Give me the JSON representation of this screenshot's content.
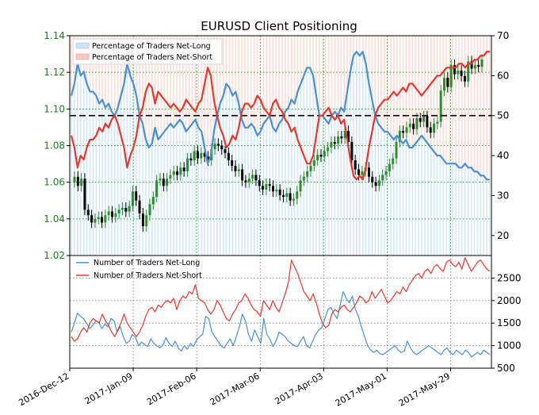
{
  "title": "EURUSD Client Positioning",
  "colors": {
    "long": "#4a90d0",
    "short": "#e03a2f",
    "candle_up": "#2e8b2e",
    "candle_down": "#000000",
    "left_axis": "#1f7a1f",
    "grid": "#2a9a2a"
  },
  "x_ticks": [
    "2016-Dec-12",
    "2017-Jan-09",
    "2017-Feb-06",
    "2017-Mar-06",
    "2017-Apr-03",
    "2017-May-01",
    "2017-May-29"
  ],
  "top_panel": {
    "left_axis_ticks": [
      "1.02",
      "1.04",
      "1.06",
      "1.08",
      "1.10",
      "1.12",
      "1.14"
    ],
    "right_axis_ticks": [
      "20",
      "30",
      "40",
      "50",
      "60",
      "70"
    ],
    "legend": [
      "Percentage of Traders Net-Long",
      "Percentage of Traders Net-Short"
    ]
  },
  "bottom_panel": {
    "right_axis_ticks": [
      "500",
      "1000",
      "1500",
      "2000",
      "2500"
    ],
    "legend": [
      "Number of Traders Net-Long",
      "Number of Traders Net-Short"
    ]
  },
  "chart_data": [
    {
      "type": "line",
      "panel": "top",
      "x_range_days": [
        0,
        186
      ],
      "x_tick_days": [
        0,
        28,
        56,
        84,
        112,
        140,
        168
      ],
      "ylim_left": [
        1.02,
        1.14
      ],
      "ylim_right": [
        15,
        70
      ],
      "reference_line": 50,
      "price_close": [
        1.063,
        1.058,
        1.062,
        1.045,
        1.042,
        1.038,
        1.04,
        1.041,
        1.038,
        1.042,
        1.044,
        1.041,
        1.043,
        1.045,
        1.046,
        1.044,
        1.047,
        1.055,
        1.05,
        1.043,
        1.036,
        1.042,
        1.048,
        1.052,
        1.061,
        1.062,
        1.058,
        1.062,
        1.064,
        1.066,
        1.064,
        1.068,
        1.066,
        1.073,
        1.072,
        1.077,
        1.073,
        1.076,
        1.074,
        1.072,
        1.078,
        1.081,
        1.08,
        1.078,
        1.076,
        1.072,
        1.069,
        1.066,
        1.067,
        1.061,
        1.06,
        1.062,
        1.064,
        1.061,
        1.058,
        1.056,
        1.059,
        1.058,
        1.055,
        1.056,
        1.053,
        1.052,
        1.054,
        1.05,
        1.051,
        1.055,
        1.061,
        1.063,
        1.066,
        1.069,
        1.072,
        1.075,
        1.074,
        1.077,
        1.079,
        1.082,
        1.081,
        1.085,
        1.084,
        1.088,
        1.082,
        1.072,
        1.067,
        1.064,
        1.066,
        1.068,
        1.063,
        1.06,
        1.058,
        1.061,
        1.064,
        1.066,
        1.07,
        1.073,
        1.082,
        1.088,
        1.087,
        1.09,
        1.092,
        1.089,
        1.095,
        1.093,
        1.096,
        1.09,
        1.087,
        1.092,
        1.093,
        1.11,
        1.117,
        1.112,
        1.124,
        1.119,
        1.121,
        1.118,
        1.115,
        1.126,
        1.122,
        1.124,
        1.123,
        1.127
      ],
      "series": [
        {
          "name": "Percentage of Traders Net-Long",
          "values": [
            55,
            58,
            63,
            60,
            61,
            58,
            56,
            56,
            55,
            53,
            54,
            52,
            53,
            51,
            50,
            52,
            55,
            58,
            63,
            60,
            58,
            55,
            50,
            48,
            44,
            42,
            43,
            47,
            44,
            45,
            46,
            47,
            48,
            47,
            48,
            49,
            48,
            46,
            47,
            48,
            49,
            47,
            46,
            42,
            38,
            40,
            46,
            50,
            53,
            55,
            58,
            57,
            55,
            56,
            53,
            49,
            47,
            47,
            48,
            47,
            45,
            46,
            48,
            49,
            50,
            47,
            46,
            48,
            49,
            51,
            52,
            54,
            53,
            56,
            58,
            60,
            62,
            62,
            60,
            55,
            50,
            50,
            49,
            48,
            50,
            51,
            50,
            52,
            51,
            56,
            61,
            65,
            66,
            65,
            66,
            63,
            58,
            54,
            50,
            48,
            47,
            46,
            46,
            45,
            44,
            45,
            44,
            43,
            44,
            42,
            42,
            43,
            44,
            45,
            44,
            43,
            42,
            41,
            40,
            40,
            39,
            38,
            38,
            38,
            38,
            37,
            37,
            38,
            37,
            37,
            36,
            36,
            35,
            35,
            34,
            34
          ]
        },
        {
          "name": "Percentage of Traders Net-Short",
          "values": [
            45,
            42,
            37,
            40,
            39,
            42,
            44,
            44,
            45,
            47,
            46,
            48,
            47,
            49,
            50,
            48,
            45,
            42,
            37,
            40,
            42,
            45,
            50,
            52,
            56,
            58,
            57,
            53,
            56,
            55,
            54,
            53,
            52,
            53,
            52,
            51,
            52,
            54,
            53,
            52,
            51,
            53,
            54,
            58,
            62,
            60,
            54,
            50,
            47,
            45,
            42,
            43,
            45,
            44,
            47,
            51,
            53,
            53,
            52,
            53,
            55,
            54,
            52,
            51,
            50,
            53,
            54,
            52,
            51,
            49,
            48,
            46,
            47,
            44,
            42,
            40,
            38,
            38,
            40,
            45,
            50,
            50,
            51,
            52,
            50,
            49,
            50,
            48,
            49,
            44,
            39,
            35,
            34,
            35,
            34,
            37,
            42,
            46,
            50,
            52,
            53,
            54,
            54,
            55,
            56,
            55,
            56,
            57,
            56,
            58,
            58,
            57,
            56,
            55,
            56,
            57,
            58,
            59,
            60,
            60,
            61,
            62,
            62,
            62,
            62,
            63,
            63,
            62,
            63,
            63,
            64,
            64,
            65,
            65,
            66,
            66
          ]
        }
      ]
    },
    {
      "type": "line",
      "panel": "bottom",
      "x_range_days": [
        0,
        186
      ],
      "ylim": [
        500,
        3000
      ],
      "series": [
        {
          "name": "Number of Traders Net-Long",
          "values": [
            1300,
            1500,
            1720,
            1650,
            1600,
            1500,
            1380,
            1450,
            1550,
            1520,
            1380,
            1480,
            1420,
            1600,
            1550,
            1300,
            1420,
            1200,
            1050,
            1100,
            1250,
            1180,
            1000,
            1080,
            1020,
            980,
            1150,
            1050,
            1000,
            950,
            1020,
            1180,
            1050,
            980,
            1100,
            950,
            880,
            1000,
            920,
            1050,
            980,
            1120,
            1200,
            1250,
            1650,
            1600,
            1300,
            1200,
            1100,
            1000,
            950,
            1050,
            1150,
            1000,
            1200,
            1420,
            1700,
            1550,
            1250,
            1100,
            1350,
            1200,
            1050,
            1600,
            1250,
            1150,
            980,
            1100,
            1300,
            1250,
            1200,
            1100,
            1050,
            1000,
            980,
            1100,
            1200,
            1000,
            950,
            1100,
            1250,
            1350,
            1400,
            1600,
            1800,
            1850,
            1700,
            1600,
            1900,
            2200,
            2050,
            1950,
            2100,
            1800,
            1650,
            1400,
            1200,
            1000,
            900,
            850,
            900,
            820,
            800,
            850,
            900,
            950,
            1000,
            900,
            850,
            880,
            1100,
            950,
            850,
            800,
            850,
            900,
            950,
            1000,
            950,
            900,
            850,
            800,
            900,
            950,
            850,
            800,
            900,
            850,
            800,
            900,
            850,
            750,
            800,
            850,
            800,
            900,
            850,
            800
          ]
        },
        {
          "name": "Number of Traders Net-Short",
          "values": [
            1200,
            1100,
            1150,
            1300,
            1400,
            1300,
            1500,
            1600,
            1550,
            1500,
            1700,
            1550,
            1450,
            1300,
            1200,
            1350,
            1500,
            1700,
            1500,
            1400,
            1300,
            1200,
            1300,
            1450,
            1650,
            1800,
            1850,
            1750,
            1900,
            1850,
            1950,
            2000,
            1950,
            2050,
            1800,
            2000,
            2100,
            2050,
            2200,
            2150,
            2350,
            2050,
            2000,
            1950,
            1800,
            1700,
            1800,
            2000,
            1900,
            1750,
            1600,
            1550,
            1700,
            1800,
            1950,
            2000,
            2150,
            2050,
            1900,
            1800,
            1750,
            1650,
            2000,
            1900,
            1800,
            2000,
            1850,
            1750,
            1950,
            2150,
            2400,
            2900,
            2750,
            2600,
            2400,
            2200,
            2100,
            2000,
            2150,
            1950,
            1700,
            1500,
            1400,
            1450,
            1700,
            1800,
            1750,
            1850,
            1900,
            1800,
            1750,
            1850,
            1950,
            2100,
            2050,
            1950,
            2000,
            2200,
            2050,
            2150,
            2250,
            2100,
            1950,
            2000,
            2100,
            2200,
            2150,
            2300,
            2200,
            2350,
            2450,
            2550,
            2600,
            2500,
            2650,
            2700,
            2600,
            2750,
            2800,
            2700,
            2650,
            2850,
            2900,
            2800,
            2750,
            2850,
            2700,
            2950,
            2800,
            2650,
            2750,
            2850,
            2900,
            2800,
            2700,
            2650
          ]
        }
      ]
    }
  ]
}
